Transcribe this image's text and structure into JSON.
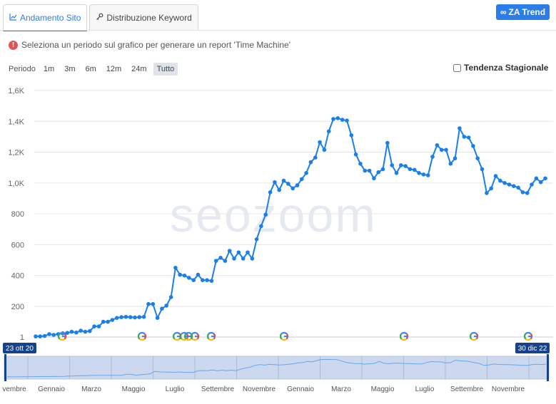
{
  "tabs": [
    {
      "label": "Andamento Sito",
      "icon": "line-chart-icon"
    },
    {
      "label": "Distribuzione Keyword",
      "icon": "key-icon"
    }
  ],
  "trend_button": {
    "label": "ZA Trend",
    "icon": "infinity-icon"
  },
  "notice": {
    "text": "Seleziona un periodo sul grafico per generare un report 'Time Machine'",
    "icon": "info-icon"
  },
  "period": {
    "label": "Periodo",
    "options": [
      "1m",
      "3m",
      "6m",
      "12m",
      "24m",
      "Tutto"
    ],
    "selected": "Tutto"
  },
  "seasonal": {
    "label": "Tendenza Stagionale",
    "checked": false
  },
  "watermark": "seozoom",
  "colors": {
    "accent": "#2b7de9",
    "line": "#1a7fe8",
    "navigator_fill": "#ccd8ee",
    "handle": "#15428b"
  },
  "chart_data": {
    "type": "line",
    "y_ticks": [
      "1",
      "200",
      "400",
      "600",
      "800",
      "1,0K",
      "1,2K",
      "1,4K",
      "1,6K"
    ],
    "ylim": [
      1,
      1600
    ],
    "range_start_label": "23 ott 20",
    "range_end_label": "30 dic 22",
    "navigator_labels": [
      "vembre",
      "Gennaio",
      "Marzo",
      "Maggio",
      "Luglio",
      "Settembre",
      "Novembre",
      "Gennaio",
      "Marzo",
      "Maggio",
      "Luglio",
      "Settembre",
      "Novembre"
    ],
    "google_updates": 10,
    "series": [
      {
        "values": [
          5,
          5,
          8,
          20,
          15,
          20,
          25,
          28,
          35,
          30,
          42,
          35,
          40,
          70,
          70,
          100,
          100,
          112,
          125,
          130,
          132,
          130,
          128,
          130,
          132,
          215,
          215,
          125,
          185,
          205,
          260,
          450,
          405,
          400,
          385,
          370,
          405,
          370,
          370,
          365,
          495,
          515,
          495,
          560,
          510,
          550,
          510,
          550,
          510,
          635,
          720,
          795,
          940,
          1005,
          955,
          1015,
          995,
          965,
          985,
          1025,
          1065,
          1135,
          1165,
          1265,
          1215,
          1335,
          1415,
          1420,
          1410,
          1405,
          1310,
          1185,
          1125,
          1080,
          1080,
          1030,
          1070,
          1090,
          1260,
          1115,
          1065,
          1115,
          1110,
          1090,
          1085,
          1065,
          1055,
          1050,
          1170,
          1245,
          1215,
          1215,
          1125,
          1160,
          1355,
          1300,
          1295,
          1240,
          1160,
          1090,
          935,
          965,
          1045,
          1015,
          1000,
          990,
          980,
          970,
          940,
          935,
          990,
          1030,
          1005,
          1030
        ]
      }
    ]
  }
}
